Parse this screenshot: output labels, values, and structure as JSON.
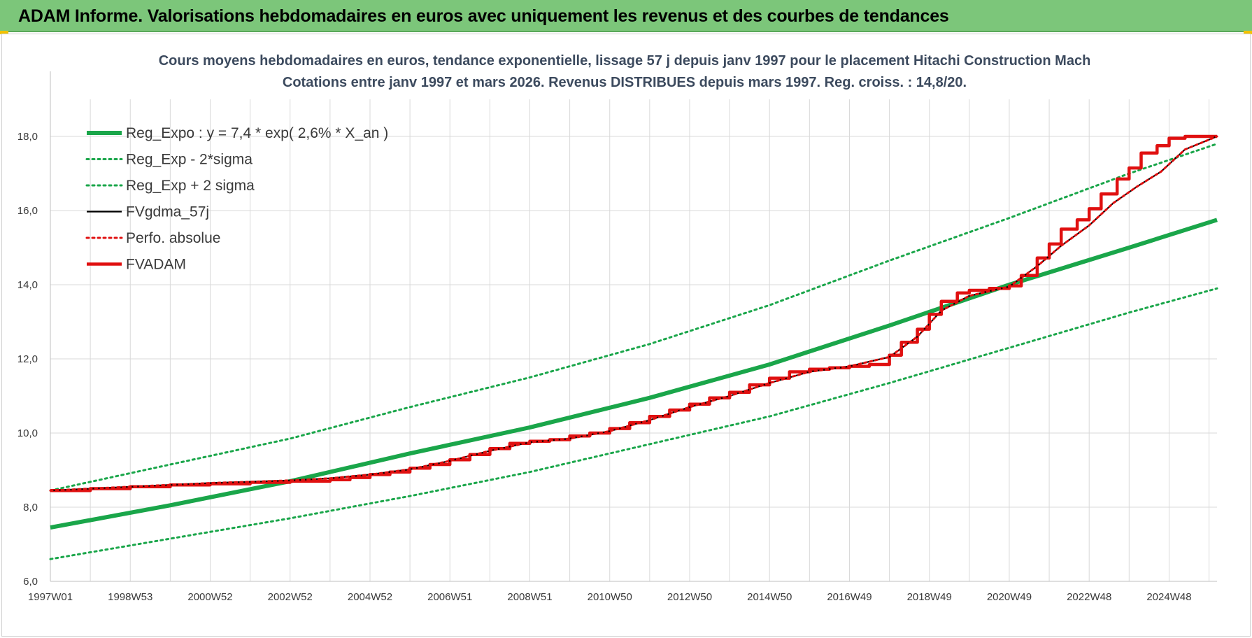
{
  "header": {
    "title": "ADAM Informe. Valorisations hebdomadaires en euros avec uniquement les revenus et des courbes de tendances"
  },
  "colors": {
    "header_bg": "#7cc67a",
    "reg_expo": "#1aa64a",
    "fvgdma": "#000000",
    "perfo": "#e01010",
    "fvadam": "#e01010",
    "grid": "#d9d9d9"
  },
  "chart_data": {
    "type": "line",
    "title": "Cours moyens hebdomadaires en euros, tendance exponentielle, lissage 57 j depuis janv 1997 pour le placement Hitachi Construction Mach",
    "subtitle": "Cotations entre janv 1997 et mars 2026. Revenus DISTRIBUES depuis mars 1997. Reg. croiss. : 14,8/20.",
    "xlabel": "",
    "ylabel": "",
    "x_range": [
      1997.0,
      2026.2
    ],
    "ylim": [
      6.0,
      19.0
    ],
    "grid": true,
    "legend_position": "top-left",
    "x_tick_labels": [
      "1997W01",
      "1998W53",
      "2000W52",
      "2002W52",
      "2004W52",
      "2006W51",
      "2008W51",
      "2010W50",
      "2012W50",
      "2014W50",
      "2016W49",
      "2018W49",
      "2020W49",
      "2022W48",
      "2024W48"
    ],
    "x_tick_years": [
      1997.0,
      1999.0,
      2001.0,
      2003.0,
      2005.0,
      2007.0,
      2009.0,
      2011.0,
      2013.0,
      2015.0,
      2017.0,
      2019.0,
      2021.0,
      2023.0,
      2025.0
    ],
    "y_ticks": [
      6.0,
      8.0,
      10.0,
      12.0,
      14.0,
      16.0,
      18.0
    ],
    "y_tick_labels": [
      "6,0",
      "8,0",
      "10,0",
      "12,0",
      "14,0",
      "16,0",
      "18,0"
    ],
    "series": [
      {
        "name": "Reg_Expo : y = 7,4 * exp( 2,6% *  X_an )",
        "style": "solid-thick",
        "color": "#1aa64a",
        "x": [
          1997.0,
          2000.0,
          2003.0,
          2006.0,
          2009.0,
          2012.0,
          2015.0,
          2018.0,
          2021.0,
          2024.0,
          2026.2
        ],
        "y": [
          7.45,
          8.05,
          8.7,
          9.45,
          10.15,
          10.95,
          11.85,
          12.9,
          14.0,
          15.0,
          15.75
        ]
      },
      {
        "name": "Reg_Exp - 2*sigma",
        "style": "dotted",
        "color": "#1aa64a",
        "x": [
          1997.0,
          2000.0,
          2003.0,
          2006.0,
          2009.0,
          2012.0,
          2015.0,
          2018.0,
          2021.0,
          2024.0,
          2026.2
        ],
        "y": [
          6.6,
          7.15,
          7.7,
          8.3,
          8.95,
          9.7,
          10.45,
          11.35,
          12.3,
          13.25,
          13.9
        ]
      },
      {
        "name": "Reg_Exp + 2 sigma",
        "style": "dotted",
        "color": "#1aa64a",
        "x": [
          1997.0,
          2000.0,
          2003.0,
          2006.0,
          2009.0,
          2012.0,
          2015.0,
          2018.0,
          2021.0,
          2024.0,
          2026.2
        ],
        "y": [
          8.45,
          9.15,
          9.85,
          10.7,
          11.5,
          12.4,
          13.45,
          14.65,
          15.8,
          17.0,
          17.8
        ]
      },
      {
        "name": "FVgdma_57j",
        "style": "solid-thin",
        "color": "#000000",
        "x": [
          1997.0,
          1999.0,
          2001.0,
          2003.0,
          2004.0,
          2005.0,
          2006.0,
          2007.0,
          2008.0,
          2009.0,
          2010.0,
          2011.0,
          2012.0,
          2013.0,
          2014.0,
          2015.0,
          2016.0,
          2017.0,
          2018.0,
          2018.7,
          2019.3,
          2020.0,
          2021.0,
          2021.7,
          2022.3,
          2023.0,
          2023.6,
          2024.2,
          2024.8,
          2025.4,
          2026.2
        ],
        "y": [
          8.45,
          8.55,
          8.65,
          8.72,
          8.78,
          8.88,
          9.02,
          9.25,
          9.52,
          9.75,
          9.85,
          10.05,
          10.35,
          10.7,
          11.0,
          11.35,
          11.65,
          11.8,
          12.05,
          12.6,
          13.3,
          13.7,
          13.95,
          14.5,
          15.05,
          15.6,
          16.2,
          16.65,
          17.05,
          17.65,
          18.0
        ]
      },
      {
        "name": "Perfo. absolue",
        "style": "dotted",
        "color": "#e01010",
        "x": [
          1997.0,
          1999.0,
          2001.0,
          2003.0,
          2004.0,
          2005.0,
          2006.0,
          2007.0,
          2008.0,
          2009.0,
          2010.0,
          2011.0,
          2012.0,
          2013.0,
          2014.0,
          2015.0,
          2016.0,
          2017.0,
          2018.0,
          2018.7,
          2019.3,
          2020.0,
          2021.0,
          2021.7,
          2022.3,
          2023.0,
          2023.6,
          2024.2,
          2024.8,
          2025.4,
          2026.2
        ],
        "y": [
          8.45,
          8.55,
          8.65,
          8.72,
          8.78,
          8.88,
          9.02,
          9.25,
          9.52,
          9.75,
          9.85,
          10.05,
          10.35,
          10.7,
          11.0,
          11.35,
          11.65,
          11.8,
          12.05,
          12.6,
          13.3,
          13.7,
          13.95,
          14.5,
          15.05,
          15.6,
          16.2,
          16.65,
          17.05,
          17.65,
          18.0
        ]
      },
      {
        "name": "FVADAM",
        "style": "step-thick",
        "color": "#e01010",
        "x": [
          1997.0,
          1998.0,
          1999.0,
          2000.0,
          2001.0,
          2002.0,
          2003.0,
          2004.0,
          2004.5,
          2005.0,
          2005.5,
          2006.0,
          2006.5,
          2007.0,
          2007.5,
          2008.0,
          2008.5,
          2009.0,
          2009.5,
          2010.0,
          2010.5,
          2011.0,
          2011.5,
          2012.0,
          2012.5,
          2013.0,
          2013.5,
          2014.0,
          2014.5,
          2015.0,
          2015.5,
          2016.0,
          2016.5,
          2017.0,
          2017.5,
          2018.0,
          2018.3,
          2018.7,
          2019.0,
          2019.3,
          2019.7,
          2020.0,
          2020.5,
          2021.0,
          2021.3,
          2021.7,
          2022.0,
          2022.3,
          2022.7,
          2023.0,
          2023.3,
          2023.7,
          2024.0,
          2024.3,
          2024.7,
          2025.0,
          2025.4,
          2025.7,
          2026.2
        ],
        "y": [
          8.45,
          8.5,
          8.55,
          8.6,
          8.63,
          8.67,
          8.7,
          8.74,
          8.8,
          8.88,
          8.95,
          9.05,
          9.15,
          9.28,
          9.42,
          9.58,
          9.72,
          9.78,
          9.82,
          9.92,
          10.0,
          10.12,
          10.28,
          10.45,
          10.62,
          10.78,
          10.95,
          11.1,
          11.3,
          11.48,
          11.65,
          11.72,
          11.76,
          11.8,
          11.85,
          12.1,
          12.45,
          12.8,
          13.2,
          13.55,
          13.78,
          13.85,
          13.9,
          13.97,
          14.25,
          14.72,
          15.1,
          15.5,
          15.75,
          16.05,
          16.45,
          16.85,
          17.15,
          17.55,
          17.75,
          17.95,
          18.0,
          18.0,
          18.0
        ]
      }
    ]
  }
}
